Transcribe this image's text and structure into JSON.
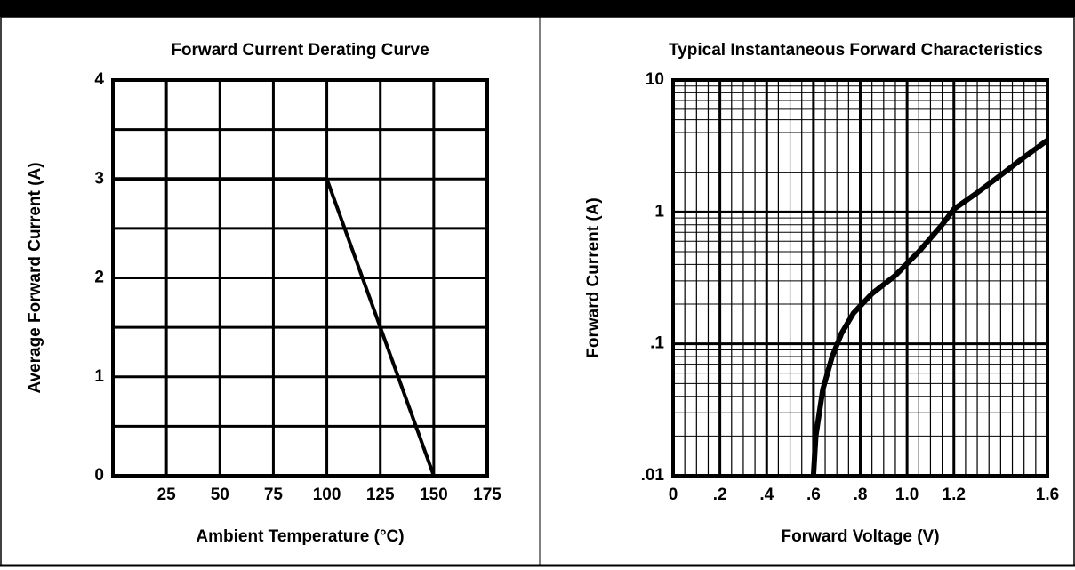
{
  "chart_data": [
    {
      "type": "line",
      "title": "Forward Current Derating Curve",
      "xlabel": "Ambient Temperature (°C)",
      "ylabel": "Average Forward Current (A)",
      "x": [
        0,
        100,
        150
      ],
      "values": [
        3,
        3,
        0
      ],
      "color": "#000000",
      "xlim": [
        0,
        175
      ],
      "xticks": [
        25,
        50,
        75,
        100,
        125,
        150,
        175
      ],
      "ylim": [
        0,
        4
      ],
      "yticks": [
        0,
        1,
        2,
        3,
        4
      ],
      "minor_yticks": [
        0.5,
        1.5,
        2.5,
        3.5
      ],
      "grid": true,
      "log_y": false
    },
    {
      "type": "line",
      "title": "Typical Instantaneous Forward Characteristics",
      "xlabel": "Forward Voltage (V)",
      "ylabel": "Forward Current (A)",
      "x": [
        0.6,
        0.61,
        0.64,
        0.68,
        0.72,
        0.77,
        0.85,
        0.95,
        1.05,
        1.15,
        1.2,
        1.3,
        1.4,
        1.5,
        1.6
      ],
      "values": [
        0.01,
        0.02,
        0.045,
        0.08,
        0.12,
        0.17,
        0.24,
        0.33,
        0.5,
        0.8,
        1.05,
        1.4,
        1.9,
        2.6,
        3.5
      ],
      "color": "#000000",
      "xlim": [
        0,
        1.6
      ],
      "xticks": [
        0,
        {
          "value": 0.2,
          "label": ".2"
        },
        {
          "value": 0.4,
          "label": ".4"
        },
        {
          "value": 0.6,
          "label": ".6"
        },
        {
          "value": 0.8,
          "label": ".8"
        },
        {
          "value": 1.0,
          "label": "1.0"
        },
        1.2,
        1.6
      ],
      "minor_xticks": [
        0.05,
        0.1,
        0.15,
        0.25,
        0.3,
        0.35,
        0.45,
        0.5,
        0.55,
        0.65,
        0.7,
        0.75,
        0.85,
        0.9,
        0.95,
        1.05,
        1.1,
        1.15,
        1.25,
        1.3,
        1.35,
        1.4,
        1.45,
        1.5,
        1.55
      ],
      "ylim": [
        0.01,
        10
      ],
      "yticks": [
        {
          "value": 0.01,
          "label": ".01"
        },
        {
          "value": 0.1,
          "label": ".1"
        },
        1,
        10
      ],
      "minor_yticks": [
        0.02,
        0.03,
        0.04,
        0.05,
        0.06,
        0.07,
        0.08,
        0.09,
        0.2,
        0.3,
        0.4,
        0.5,
        0.6,
        0.7,
        0.8,
        0.9,
        2,
        3,
        4,
        5,
        6,
        7,
        8,
        9
      ],
      "grid": true,
      "log_y": true
    }
  ]
}
